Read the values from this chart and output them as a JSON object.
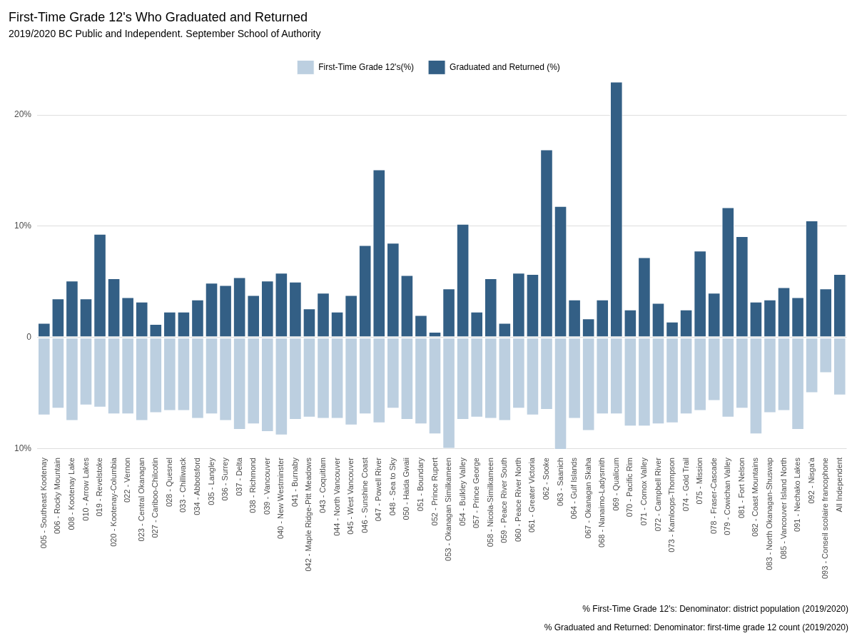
{
  "chart_data": {
    "type": "bar",
    "title": "First-Time Grade 12's Who Graduated and Returned",
    "subtitle": "2019/2020 BC Public and Independent. September School of Authority",
    "categories": [
      "005 - Southeast Kootenay",
      "006 - Rocky Mountain",
      "008 - Kootenay Lake",
      "010 - Arrow Lakes",
      "019 - Revelstoke",
      "020 - Kootenay-Columbia",
      "022 - Vernon",
      "023 - Central Okanagan",
      "027 - Cariboo-Chilcotin",
      "028 - Quesnel",
      "033 - Chilliwack",
      "034 - Abbotsford",
      "035 - Langley",
      "036 - Surrey",
      "037 - Delta",
      "038 - Richmond",
      "039 - Vancouver",
      "040 - New Westminster",
      "041 - Burnaby",
      "042 - Maple Ridge-Pitt Meadows",
      "043 - Coquitlam",
      "044 - North Vancouver",
      "045 - West Vancouver",
      "046 - Sunshine Coast",
      "047 - Powell River",
      "048 - Sea to Sky",
      "050 - Haida Gwaii",
      "051 - Boundary",
      "052 - Prince Rupert",
      "053 - Okanagan Similkameen",
      "054 - Bulkley Valley",
      "057 - Prince George",
      "058 - Nicola-Similkameen",
      "059 - Peace River South",
      "060 - Peace River North",
      "061 - Greater Victoria",
      "062 - Sooke",
      "063 - Saanich",
      "064 - Gulf Islands",
      "067 - Okanagan Skaha",
      "068 - Nanaimo-Ladysmith",
      "069 - Qualicum",
      "070 - Pacific Rim",
      "071 - Comox Valley",
      "072 - Campbell River",
      "073 - Kamloops-Thompson",
      "074 - Gold Trail",
      "075 - Mission",
      "078 - Fraser-Cascade",
      "079 - Cowichan Valley",
      "081 - Fort Nelson",
      "082 - Coast Mountains",
      "083 - North Okanagan-Shuswap",
      "085 - Vancouver Island North",
      "091 - Nechako Lakes",
      "092 - Nisga'a",
      "093 - Conseil scolaire francophone",
      "All Independent"
    ],
    "series": [
      {
        "name": "First-Time Grade 12's(%)",
        "color": "#bccfe0",
        "values": [
          -7.0,
          -6.4,
          -7.5,
          -6.1,
          -6.3,
          -6.9,
          -6.9,
          -7.5,
          -6.8,
          -6.6,
          -6.6,
          -7.3,
          -6.9,
          -7.5,
          -8.3,
          -7.8,
          -8.5,
          -8.8,
          -7.4,
          -7.2,
          -7.3,
          -7.3,
          -7.9,
          -6.9,
          -7.7,
          -6.4,
          -7.4,
          -7.8,
          -8.7,
          -10.0,
          -7.4,
          -7.2,
          -7.3,
          -7.5,
          -6.4,
          -7.0,
          -6.5,
          -10.1,
          -7.3,
          -8.4,
          -6.9,
          -6.9,
          -8.0,
          -8.0,
          -7.8,
          -7.7,
          -6.9,
          -6.6,
          -5.7,
          -7.2,
          -6.4,
          -8.7,
          -6.8,
          -6.6,
          -8.3,
          -5.0,
          -3.2,
          -5.2
        ]
      },
      {
        "name": "Graduated and Returned (%)",
        "color": "#335f85",
        "values": [
          1.3,
          3.5,
          5.1,
          3.5,
          9.3,
          5.3,
          3.6,
          3.2,
          1.2,
          2.3,
          2.3,
          3.4,
          4.9,
          4.7,
          5.4,
          3.8,
          5.1,
          5.8,
          5.0,
          2.6,
          4.0,
          2.3,
          3.8,
          8.3,
          15.1,
          8.5,
          5.6,
          2.0,
          0.5,
          4.4,
          10.2,
          2.3,
          5.3,
          1.3,
          5.8,
          5.7,
          16.9,
          11.8,
          3.4,
          1.7,
          3.4,
          23.0,
          2.5,
          7.2,
          3.1,
          1.4,
          2.5,
          7.8,
          4.0,
          11.7,
          9.1,
          3.2,
          3.4,
          4.5,
          3.6,
          10.5,
          4.4,
          5.7
        ]
      }
    ],
    "stacked": true,
    "ylim": [
      -10.1,
      23.0
    ],
    "yticks": [
      {
        "value": -10,
        "label": "10%"
      },
      0,
      {
        "value": 10,
        "label": "10%"
      },
      {
        "value": 20,
        "label": "20%"
      }
    ],
    "grid": "y",
    "legend": "top",
    "annotations": [
      "% First-Time Grade 12's: Denominator: district population (2019/2020)",
      "% Graduated and Returned: Denominator: first-time grade 12 count (2019/2020)"
    ]
  }
}
